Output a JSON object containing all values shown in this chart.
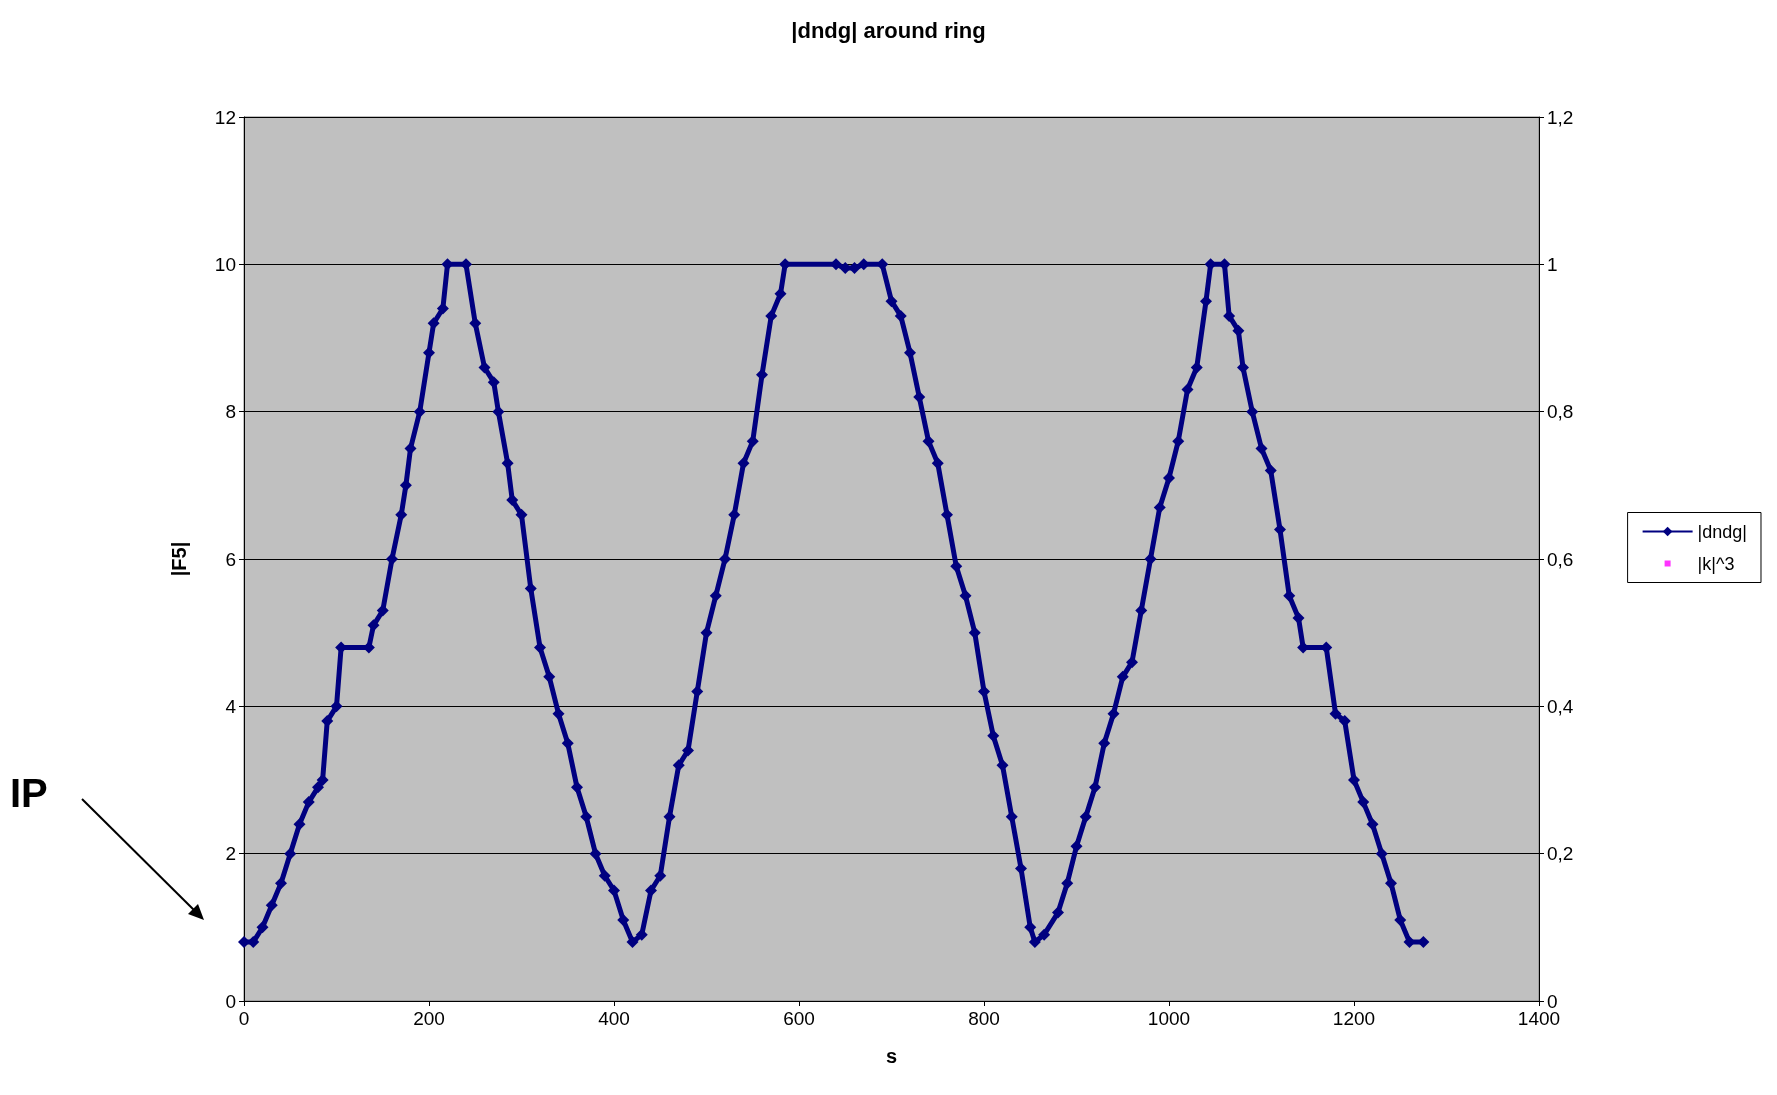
{
  "chart_data": {
    "type": "line",
    "title": "|dndg| around ring",
    "xlabel": "s",
    "ylabel": "|F5|",
    "xlim": [
      0,
      1400
    ],
    "xticks": [
      0,
      200,
      400,
      600,
      800,
      1000,
      1200,
      1400
    ],
    "ylim": [
      0,
      12
    ],
    "yticks": [
      0,
      2,
      4,
      6,
      8,
      10,
      12
    ],
    "y2lim": [
      0,
      1.2
    ],
    "y2ticks": [
      {
        "value": 0,
        "label": "0"
      },
      {
        "value": 0.2,
        "label": "0,2"
      },
      {
        "value": 0.4,
        "label": "0,4"
      },
      {
        "value": 0.6,
        "label": "0,6"
      },
      {
        "value": 0.8,
        "label": "0,8"
      },
      {
        "value": 1,
        "label": "1"
      },
      {
        "value": 1.2,
        "label": "1,2"
      }
    ],
    "grid": "y",
    "legend": "right",
    "annotations": [
      "IP"
    ],
    "series": [
      {
        "name": "|dndg|",
        "color": "#000080",
        "marker": "diamond",
        "x": [
          0,
          10,
          20,
          30,
          40,
          50,
          60,
          70,
          80,
          85,
          90,
          100,
          105,
          135,
          140,
          150,
          160,
          170,
          175,
          180,
          190,
          200,
          205,
          215,
          220,
          240,
          250,
          260,
          270,
          275,
          285,
          290,
          300,
          310,
          320,
          330,
          340,
          350,
          360,
          370,
          380,
          390,
          400,
          410,
          420,
          430,
          440,
          450,
          460,
          470,
          480,
          490,
          500,
          510,
          520,
          530,
          540,
          550,
          560,
          570,
          580,
          585,
          640,
          650,
          660,
          670,
          690,
          700,
          710,
          720,
          730,
          740,
          750,
          760,
          770,
          780,
          790,
          800,
          810,
          820,
          830,
          840,
          850,
          855,
          865,
          880,
          890,
          900,
          910,
          920,
          930,
          940,
          950,
          960,
          970,
          980,
          990,
          1000,
          1010,
          1020,
          1030,
          1040,
          1045,
          1060,
          1065,
          1075,
          1080,
          1090,
          1100,
          1110,
          1120,
          1130,
          1140,
          1145,
          1170,
          1180,
          1190,
          1200,
          1210,
          1220,
          1230,
          1240,
          1250,
          1260,
          1275
        ],
        "values": [
          0.8,
          0.8,
          1.0,
          1.3,
          1.6,
          2.0,
          2.4,
          2.7,
          2.9,
          3.0,
          3.8,
          4.0,
          4.8,
          4.8,
          5.1,
          5.3,
          6.0,
          6.6,
          7.0,
          7.5,
          8.0,
          8.8,
          9.2,
          9.4,
          10,
          10,
          9.2,
          8.6,
          8.4,
          8.0,
          7.3,
          6.8,
          6.6,
          5.6,
          4.8,
          4.4,
          3.9,
          3.5,
          2.9,
          2.5,
          2.0,
          1.7,
          1.5,
          1.1,
          0.8,
          0.9,
          1.5,
          1.7,
          2.5,
          3.2,
          3.4,
          4.2,
          5.0,
          5.5,
          6.0,
          6.6,
          7.3,
          7.6,
          8.5,
          9.3,
          9.6,
          10,
          10,
          9.95,
          9.95,
          10,
          10,
          9.5,
          9.3,
          8.8,
          8.2,
          7.6,
          7.3,
          6.6,
          5.9,
          5.5,
          5.0,
          4.2,
          3.6,
          3.2,
          2.5,
          1.8,
          1.0,
          0.8,
          0.9,
          1.2,
          1.6,
          2.1,
          2.5,
          2.9,
          3.5,
          3.9,
          4.4,
          4.6,
          5.3,
          6.0,
          6.7,
          7.1,
          7.6,
          8.3,
          8.6,
          9.5,
          10,
          10,
          9.3,
          9.1,
          8.6,
          8.0,
          7.5,
          7.2,
          6.4,
          5.5,
          5.2,
          4.8,
          4.8,
          3.9,
          3.8,
          3.0,
          2.7,
          2.4,
          2.0,
          1.6,
          1.1,
          0.8,
          0.8
        ]
      },
      {
        "name": "|k|^3",
        "type": "scatter",
        "color": "#ff00ff",
        "marker": "square"
      }
    ]
  }
}
